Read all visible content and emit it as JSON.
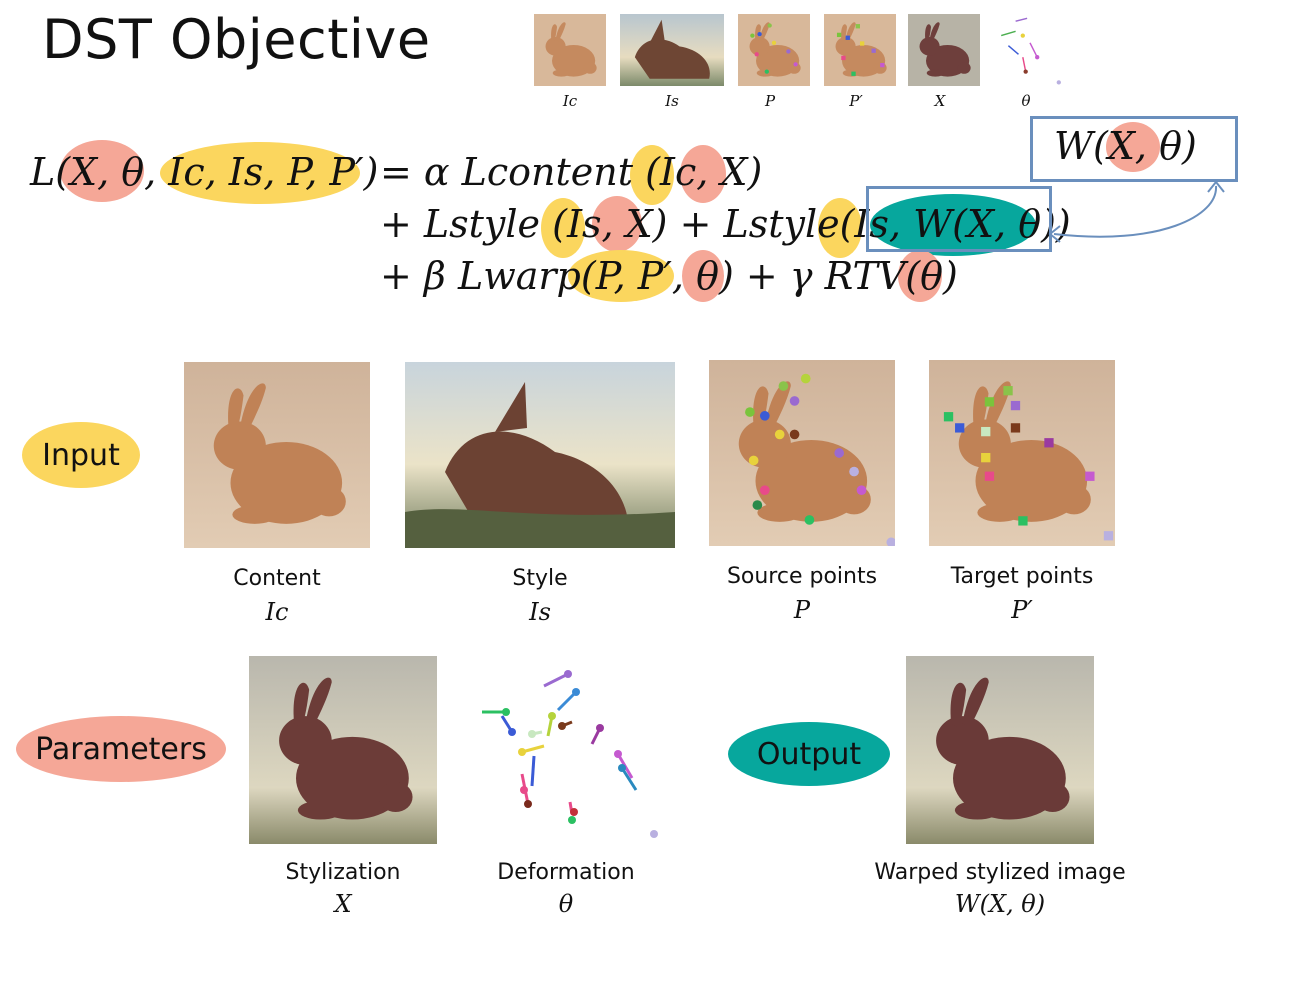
{
  "title": "DST Objective",
  "thumbs": [
    {
      "label": "Ic"
    },
    {
      "label": "Is"
    },
    {
      "label": "P"
    },
    {
      "label": "P′"
    },
    {
      "label": "X"
    },
    {
      "label": "θ"
    }
  ],
  "equation": {
    "line1_lhs": "L(X, θ, Ic, Is, P, P′)",
    "line1_rhs": "= α Lcontent (Ic, X)",
    "line2": "+ Lstyle (Is, X) + Lstyle(Is, W(X, θ))",
    "line3": "+ β Lwarp(P, P′, θ) + γ RTV(θ)",
    "box_label": "W(X, θ)"
  },
  "groups": {
    "input": "Input",
    "parameters": "Parameters",
    "output": "Output"
  },
  "items": {
    "content": {
      "caption": "Content",
      "symbol": "Ic"
    },
    "style": {
      "caption": "Style",
      "symbol": "Is"
    },
    "source": {
      "caption": "Source points",
      "symbol": "P"
    },
    "target": {
      "caption": "Target points",
      "symbol": "P′"
    },
    "stylization": {
      "caption": "Stylization",
      "symbol": "X"
    },
    "deformation": {
      "caption": "Deformation",
      "symbol": "θ"
    },
    "warped": {
      "caption": "Warped stylized image",
      "symbol": "W(X, θ)"
    }
  },
  "colors": {
    "input": "#fbd65e",
    "parameters": "#f5a797",
    "output": "#07a79d",
    "box": "#6a8fbd"
  }
}
